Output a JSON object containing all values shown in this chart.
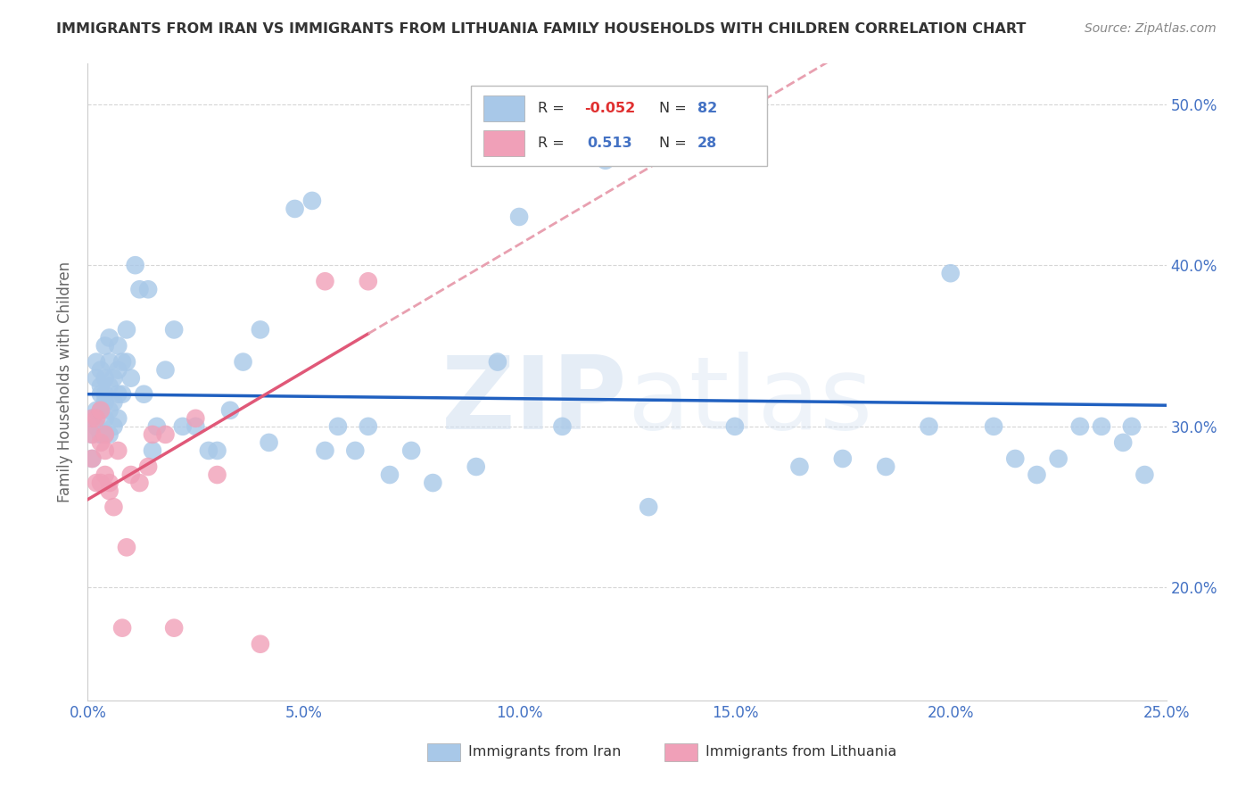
{
  "title": "IMMIGRANTS FROM IRAN VS IMMIGRANTS FROM LITHUANIA FAMILY HOUSEHOLDS WITH CHILDREN CORRELATION CHART",
  "source": "Source: ZipAtlas.com",
  "xlabel_iran": "Immigrants from Iran",
  "xlabel_lith": "Immigrants from Lithuania",
  "ylabel": "Family Households with Children",
  "xmin": 0.0,
  "xmax": 0.25,
  "ymin": 0.13,
  "ymax": 0.525,
  "yticks": [
    0.2,
    0.3,
    0.4,
    0.5
  ],
  "xticks": [
    0.0,
    0.05,
    0.1,
    0.15,
    0.2,
    0.25
  ],
  "R_iran": -0.052,
  "N_iran": 82,
  "R_lith": 0.513,
  "N_lith": 28,
  "iran_color": "#A8C8E8",
  "lith_color": "#F0A0B8",
  "iran_line_color": "#2060C0",
  "lith_line_color": "#E05878",
  "lith_dash_color": "#E8A0B0",
  "iran_x": [
    0.001,
    0.001,
    0.001,
    0.002,
    0.002,
    0.002,
    0.002,
    0.003,
    0.003,
    0.003,
    0.003,
    0.003,
    0.003,
    0.004,
    0.004,
    0.004,
    0.004,
    0.004,
    0.004,
    0.005,
    0.005,
    0.005,
    0.005,
    0.005,
    0.006,
    0.006,
    0.006,
    0.007,
    0.007,
    0.007,
    0.007,
    0.008,
    0.008,
    0.009,
    0.009,
    0.01,
    0.011,
    0.012,
    0.013,
    0.014,
    0.015,
    0.016,
    0.018,
    0.02,
    0.022,
    0.025,
    0.028,
    0.03,
    0.033,
    0.036,
    0.04,
    0.042,
    0.048,
    0.052,
    0.055,
    0.058,
    0.062,
    0.065,
    0.07,
    0.075,
    0.08,
    0.09,
    0.095,
    0.1,
    0.11,
    0.12,
    0.13,
    0.15,
    0.165,
    0.175,
    0.185,
    0.195,
    0.2,
    0.21,
    0.215,
    0.22,
    0.225,
    0.23,
    0.235,
    0.24,
    0.242,
    0.245
  ],
  "iran_y": [
    0.295,
    0.305,
    0.28,
    0.31,
    0.3,
    0.33,
    0.34,
    0.32,
    0.31,
    0.295,
    0.335,
    0.325,
    0.295,
    0.35,
    0.33,
    0.32,
    0.305,
    0.295,
    0.315,
    0.355,
    0.34,
    0.325,
    0.31,
    0.295,
    0.33,
    0.315,
    0.3,
    0.35,
    0.335,
    0.32,
    0.305,
    0.34,
    0.32,
    0.36,
    0.34,
    0.33,
    0.4,
    0.385,
    0.32,
    0.385,
    0.285,
    0.3,
    0.335,
    0.36,
    0.3,
    0.3,
    0.285,
    0.285,
    0.31,
    0.34,
    0.36,
    0.29,
    0.435,
    0.44,
    0.285,
    0.3,
    0.285,
    0.3,
    0.27,
    0.285,
    0.265,
    0.275,
    0.34,
    0.43,
    0.3,
    0.465,
    0.25,
    0.3,
    0.275,
    0.28,
    0.275,
    0.3,
    0.395,
    0.3,
    0.28,
    0.27,
    0.28,
    0.3,
    0.3,
    0.29,
    0.3,
    0.27
  ],
  "lith_x": [
    0.001,
    0.001,
    0.001,
    0.002,
    0.002,
    0.003,
    0.003,
    0.003,
    0.004,
    0.004,
    0.004,
    0.005,
    0.005,
    0.006,
    0.007,
    0.008,
    0.009,
    0.01,
    0.012,
    0.014,
    0.015,
    0.018,
    0.02,
    0.025,
    0.03,
    0.04,
    0.055,
    0.065
  ],
  "lith_y": [
    0.295,
    0.28,
    0.305,
    0.265,
    0.305,
    0.31,
    0.265,
    0.29,
    0.295,
    0.285,
    0.27,
    0.26,
    0.265,
    0.25,
    0.285,
    0.175,
    0.225,
    0.27,
    0.265,
    0.275,
    0.295,
    0.295,
    0.175,
    0.305,
    0.27,
    0.165,
    0.39,
    0.39
  ],
  "background_color": "#FFFFFF",
  "grid_color": "#CCCCCC",
  "title_color": "#333333",
  "axis_color": "#4472C4",
  "watermark_color": "#D0DFF0"
}
